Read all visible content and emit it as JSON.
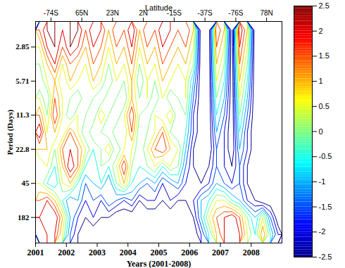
{
  "chart_data": {
    "type": "contour",
    "x_label": "Years (2001-2008)",
    "y_label": "Period (Days)",
    "top_axis": {
      "label": "Latitude",
      "ticks": [
        {
          "value": 2001.5,
          "label": "-74S"
        },
        {
          "value": 2002.5,
          "label": "65N"
        },
        {
          "value": 2003.5,
          "label": "23N"
        },
        {
          "value": 2004.5,
          "label": "2N"
        },
        {
          "value": 2005.5,
          "label": "-15S"
        },
        {
          "value": 2006.5,
          "label": "-37S"
        },
        {
          "value": 2007.5,
          "label": "-76S"
        },
        {
          "value": 2008.5,
          "label": "78N"
        }
      ]
    },
    "xlim": [
      2001,
      2009
    ],
    "xticks": [
      2001,
      2002,
      2003,
      2004,
      2005,
      2006,
      2007,
      2008
    ],
    "categories": [
      null,
      "2.85",
      null,
      "5.71",
      null,
      "11.3",
      null,
      "22.8",
      null,
      "45",
      null,
      "182",
      null
    ],
    "cells": [
      [
        1.5,
        2.5,
        2.5,
        2,
        2.5,
        2.5,
        1.5,
        2.5,
        2,
        1,
        2,
        1.5,
        2.5,
        1,
        2,
        1.5,
        2.5,
        2,
        1.5,
        2,
        1,
        -3,
        -3,
        2,
        1,
        -3,
        2.5,
        1,
        -3,
        -3,
        -3,
        -3
      ],
      [
        0.5,
        2,
        2.5,
        1.5,
        2.5,
        2,
        1,
        2,
        1.5,
        0.5,
        1.5,
        1,
        2,
        0.5,
        1.5,
        1,
        2,
        1.5,
        1,
        1.5,
        0.5,
        -3,
        -3,
        1.5,
        0.5,
        -3,
        2,
        0.5,
        -3,
        -3,
        -3,
        -3
      ],
      [
        0,
        1,
        2,
        0.5,
        1.5,
        1,
        0.5,
        1.5,
        1,
        0,
        1,
        0.5,
        1.5,
        0,
        1,
        0.5,
        1.5,
        1,
        0.5,
        1,
        0,
        -3,
        -3,
        1,
        0,
        -3,
        1.5,
        0,
        -3,
        -3,
        -3,
        -3
      ],
      [
        -0.5,
        0.5,
        1,
        0,
        1,
        0.5,
        0,
        1,
        0.5,
        -0.5,
        0.5,
        0,
        1,
        -0.5,
        0.5,
        0,
        1,
        0.5,
        0,
        0.5,
        -1,
        -3,
        -3,
        0.5,
        -0.5,
        -3,
        1,
        -0.5,
        -3,
        -3,
        -3,
        -3
      ],
      [
        0.5,
        -0.5,
        1.5,
        0.5,
        0,
        -0.5,
        0.5,
        0,
        -0.5,
        0.5,
        0,
        -0.5,
        1,
        0,
        0.5,
        -0.5,
        0.5,
        -0.5,
        0,
        0.5,
        -1.5,
        -3,
        -3,
        0,
        -1,
        -3,
        0.5,
        -1,
        -3,
        -3,
        -3,
        -3
      ],
      [
        1.5,
        0,
        2,
        0.5,
        -0.5,
        0.5,
        0,
        -0.5,
        1,
        0,
        -0.5,
        0.5,
        2,
        0,
        -0.5,
        0.5,
        0,
        1,
        -0.5,
        0,
        -2,
        -3,
        -3,
        -0.5,
        -1.5,
        -3,
        0,
        -1.5,
        -3,
        -3,
        -3,
        -3
      ],
      [
        2.5,
        0.5,
        1,
        0,
        1.5,
        0.5,
        -0.5,
        0.5,
        0,
        -0.5,
        0.5,
        0,
        1.5,
        -0.5,
        0,
        0.5,
        1.5,
        0,
        -0.5,
        -0.5,
        -2,
        -3,
        -3,
        -1,
        -2,
        -3,
        -0.5,
        -2,
        -3,
        -3,
        -3,
        -3
      ],
      [
        1,
        1,
        0,
        1.5,
        2,
        1.5,
        0.5,
        -0.5,
        0,
        1,
        -0.5,
        0.5,
        0.5,
        -0.5,
        0.5,
        1.5,
        2,
        1,
        0.5,
        -1,
        -2.5,
        -3,
        -3,
        -1.5,
        -2,
        -3,
        -1,
        -2,
        -3,
        -3,
        -3,
        -3
      ],
      [
        0,
        0.5,
        -0.5,
        1,
        2.5,
        1.5,
        -0.5,
        -1,
        0,
        -0.5,
        0.5,
        2,
        0,
        -0.5,
        0,
        0.5,
        -0.5,
        0.5,
        0,
        -1.5,
        -2.5,
        -3,
        -2.5,
        -1.5,
        -2,
        -2.5,
        -1.5,
        -2.5,
        -3,
        -3,
        -3,
        -3
      ],
      [
        0.5,
        -0.5,
        -1,
        0.5,
        1,
        -0.5,
        -1.5,
        -1,
        -0.5,
        -1.5,
        0,
        1,
        -0.5,
        -1,
        -1.5,
        -1,
        -2,
        -1.5,
        -1,
        -2,
        -2.5,
        -2.5,
        -2,
        -1,
        -1.5,
        -2,
        -1.5,
        -2.5,
        -3,
        -3,
        -3,
        -3
      ],
      [
        1.5,
        2,
        1,
        -0.5,
        -1.5,
        -1,
        -2,
        -1.5,
        -2,
        -1,
        -1.5,
        -2,
        -1.5,
        -2.5,
        -2,
        -2,
        -2.5,
        -2,
        -2.5,
        -2.5,
        -2,
        -1,
        -0.5,
        0.5,
        0.5,
        -0.5,
        -1,
        -2,
        -2.5,
        -3,
        -3,
        -3
      ],
      [
        2,
        2.5,
        2.5,
        1,
        -1,
        -2,
        -2.5,
        -2,
        -2.5,
        -2.5,
        -3,
        -3,
        -3,
        -3,
        -3,
        -3,
        -3,
        -3,
        -3,
        -3,
        -2.5,
        -1,
        0.5,
        1.5,
        2,
        2.5,
        1.5,
        0,
        -1,
        0.5,
        -1.5,
        -3
      ],
      [
        1.5,
        2,
        2,
        0.5,
        -1.5,
        -2.5,
        -3,
        -3,
        -3,
        -3,
        -3,
        -3,
        -3,
        -3,
        -3,
        -3,
        -3,
        -3,
        -3,
        -3,
        -3,
        -2,
        -0.5,
        1,
        2,
        2.5,
        2,
        0.5,
        -0.5,
        1.5,
        -0.5,
        -2
      ]
    ],
    "colorbar": {
      "range": [
        -2.5,
        2.5
      ],
      "ticks": [
        2.5,
        2,
        1.5,
        1,
        0.5,
        0,
        -0.5,
        -1,
        -1.5,
        -2,
        -2.5
      ]
    }
  }
}
